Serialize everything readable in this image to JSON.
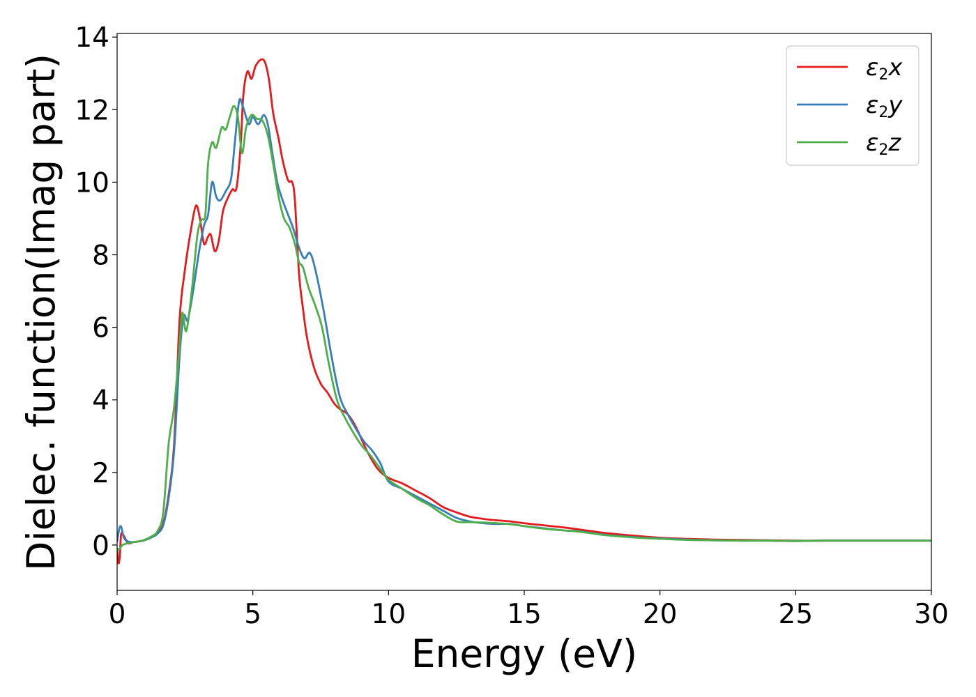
{
  "chart_data": {
    "type": "line",
    "title": "",
    "xlabel": "Energy (eV)",
    "ylabel": "Dielec. function(Imag part)",
    "xlim": [
      0,
      30
    ],
    "ylim": [
      -1.25,
      14.1
    ],
    "xticks": [
      0,
      5,
      10,
      15,
      20,
      25,
      30
    ],
    "xtick_labels": [
      "0",
      "5",
      "10",
      "15",
      "20",
      "25",
      "30"
    ],
    "yticks": [
      0,
      2,
      4,
      6,
      8,
      10,
      12,
      14
    ],
    "ytick_labels": [
      "0",
      "2",
      "4",
      "6",
      "8",
      "10",
      "12",
      "14"
    ],
    "grid": false,
    "legend_position": "top-right",
    "series": [
      {
        "name_base": "ε",
        "name_sub": "2",
        "name_var": "x",
        "color": "#e41a1c",
        "points": [
          [
            0,
            -0.1
          ],
          [
            0.05,
            -0.5
          ],
          [
            0.1,
            -0.3
          ],
          [
            0.15,
            0.3
          ],
          [
            0.25,
            0.25
          ],
          [
            0.4,
            0.05
          ],
          [
            0.6,
            0.08
          ],
          [
            0.8,
            0.1
          ],
          [
            1.0,
            0.13
          ],
          [
            1.3,
            0.25
          ],
          [
            1.5,
            0.35
          ],
          [
            1.7,
            0.6
          ],
          [
            1.9,
            1.4
          ],
          [
            2.1,
            2.8
          ],
          [
            2.3,
            6.2
          ],
          [
            2.5,
            7.6
          ],
          [
            2.7,
            8.6
          ],
          [
            2.9,
            9.35
          ],
          [
            3.05,
            9.0
          ],
          [
            3.2,
            8.3
          ],
          [
            3.35,
            8.5
          ],
          [
            3.45,
            8.55
          ],
          [
            3.6,
            8.1
          ],
          [
            3.75,
            8.4
          ],
          [
            3.9,
            9.2
          ],
          [
            4.1,
            9.6
          ],
          [
            4.25,
            9.8
          ],
          [
            4.4,
            9.85
          ],
          [
            4.55,
            11.0
          ],
          [
            4.65,
            12.4
          ],
          [
            4.8,
            13.05
          ],
          [
            4.95,
            12.85
          ],
          [
            5.1,
            13.2
          ],
          [
            5.3,
            13.38
          ],
          [
            5.45,
            13.3
          ],
          [
            5.6,
            12.8
          ],
          [
            5.75,
            11.9
          ],
          [
            5.95,
            11.2
          ],
          [
            6.1,
            10.6
          ],
          [
            6.3,
            10.05
          ],
          [
            6.45,
            10.0
          ],
          [
            6.55,
            9.5
          ],
          [
            6.7,
            7.5
          ],
          [
            6.85,
            6.5
          ],
          [
            7.0,
            5.7
          ],
          [
            7.25,
            4.9
          ],
          [
            7.5,
            4.45
          ],
          [
            7.75,
            4.2
          ],
          [
            8.0,
            3.9
          ],
          [
            8.2,
            3.75
          ],
          [
            8.5,
            3.6
          ],
          [
            8.8,
            3.25
          ],
          [
            9.2,
            2.6
          ],
          [
            9.6,
            2.1
          ],
          [
            10.0,
            1.85
          ],
          [
            10.5,
            1.7
          ],
          [
            11.0,
            1.5
          ],
          [
            11.5,
            1.3
          ],
          [
            12.0,
            1.05
          ],
          [
            12.5,
            0.9
          ],
          [
            13.0,
            0.78
          ],
          [
            13.5,
            0.72
          ],
          [
            14.0,
            0.68
          ],
          [
            14.5,
            0.65
          ],
          [
            15.0,
            0.6
          ],
          [
            15.5,
            0.56
          ],
          [
            16.0,
            0.52
          ],
          [
            16.5,
            0.48
          ],
          [
            17.0,
            0.43
          ],
          [
            17.5,
            0.38
          ],
          [
            18.0,
            0.33
          ],
          [
            19.0,
            0.26
          ],
          [
            20.0,
            0.2
          ],
          [
            21.0,
            0.17
          ],
          [
            22.0,
            0.15
          ],
          [
            23.0,
            0.14
          ],
          [
            24.0,
            0.13
          ],
          [
            25.0,
            0.12
          ],
          [
            26.0,
            0.12
          ],
          [
            28.0,
            0.12
          ],
          [
            30.0,
            0.12
          ]
        ]
      },
      {
        "name_base": "ε",
        "name_sub": "2",
        "name_var": "y",
        "color": "#377eb8",
        "points": [
          [
            0,
            0.1
          ],
          [
            0.08,
            0.45
          ],
          [
            0.15,
            0.5
          ],
          [
            0.25,
            0.2
          ],
          [
            0.4,
            0.1
          ],
          [
            0.6,
            0.08
          ],
          [
            0.8,
            0.1
          ],
          [
            1.0,
            0.13
          ],
          [
            1.3,
            0.22
          ],
          [
            1.5,
            0.32
          ],
          [
            1.7,
            0.55
          ],
          [
            1.9,
            1.3
          ],
          [
            2.1,
            2.6
          ],
          [
            2.3,
            5.2
          ],
          [
            2.45,
            6.3
          ],
          [
            2.6,
            6.2
          ],
          [
            2.8,
            7.0
          ],
          [
            3.0,
            8.0
          ],
          [
            3.2,
            8.8
          ],
          [
            3.35,
            9.1
          ],
          [
            3.5,
            10.0
          ],
          [
            3.65,
            9.6
          ],
          [
            3.8,
            9.5
          ],
          [
            4.0,
            9.75
          ],
          [
            4.2,
            10.1
          ],
          [
            4.35,
            11.2
          ],
          [
            4.5,
            12.25
          ],
          [
            4.65,
            12.05
          ],
          [
            4.85,
            11.6
          ],
          [
            5.0,
            11.8
          ],
          [
            5.2,
            11.6
          ],
          [
            5.4,
            11.85
          ],
          [
            5.55,
            11.6
          ],
          [
            5.7,
            10.9
          ],
          [
            5.9,
            10.0
          ],
          [
            6.1,
            9.5
          ],
          [
            6.3,
            9.1
          ],
          [
            6.5,
            8.7
          ],
          [
            6.7,
            8.2
          ],
          [
            6.9,
            7.9
          ],
          [
            7.1,
            8.05
          ],
          [
            7.3,
            7.6
          ],
          [
            7.6,
            6.5
          ],
          [
            7.9,
            5.2
          ],
          [
            8.2,
            4.1
          ],
          [
            8.5,
            3.6
          ],
          [
            8.8,
            3.2
          ],
          [
            9.1,
            2.85
          ],
          [
            9.4,
            2.6
          ],
          [
            9.7,
            2.25
          ],
          [
            10.0,
            1.75
          ],
          [
            10.5,
            1.55
          ],
          [
            11.0,
            1.35
          ],
          [
            11.5,
            1.15
          ],
          [
            12.0,
            0.95
          ],
          [
            12.5,
            0.75
          ],
          [
            13.0,
            0.65
          ],
          [
            13.5,
            0.6
          ],
          [
            14.0,
            0.58
          ],
          [
            14.5,
            0.58
          ],
          [
            15.0,
            0.52
          ],
          [
            15.5,
            0.48
          ],
          [
            16.0,
            0.44
          ],
          [
            16.5,
            0.4
          ],
          [
            17.0,
            0.38
          ],
          [
            17.5,
            0.33
          ],
          [
            18.0,
            0.28
          ],
          [
            19.0,
            0.22
          ],
          [
            20.0,
            0.18
          ],
          [
            21.0,
            0.15
          ],
          [
            22.0,
            0.13
          ],
          [
            23.0,
            0.12
          ],
          [
            24.0,
            0.12
          ],
          [
            25.0,
            0.11
          ],
          [
            26.0,
            0.12
          ],
          [
            28.0,
            0.12
          ],
          [
            30.0,
            0.12
          ]
        ]
      },
      {
        "name_base": "ε",
        "name_sub": "2",
        "name_var": "z",
        "color": "#4daf4a",
        "points": [
          [
            0,
            -0.15
          ],
          [
            0.1,
            -0.1
          ],
          [
            0.2,
            0.0
          ],
          [
            0.4,
            0.05
          ],
          [
            0.6,
            0.08
          ],
          [
            0.8,
            0.1
          ],
          [
            1.0,
            0.14
          ],
          [
            1.3,
            0.25
          ],
          [
            1.5,
            0.4
          ],
          [
            1.7,
            0.9
          ],
          [
            1.9,
            2.8
          ],
          [
            2.1,
            3.8
          ],
          [
            2.3,
            5.5
          ],
          [
            2.4,
            6.4
          ],
          [
            2.55,
            5.9
          ],
          [
            2.75,
            7.0
          ],
          [
            2.95,
            8.5
          ],
          [
            3.1,
            8.95
          ],
          [
            3.25,
            9.1
          ],
          [
            3.35,
            10.5
          ],
          [
            3.5,
            11.1
          ],
          [
            3.65,
            10.95
          ],
          [
            3.85,
            11.5
          ],
          [
            4.0,
            11.45
          ],
          [
            4.15,
            11.8
          ],
          [
            4.3,
            12.1
          ],
          [
            4.45,
            11.8
          ],
          [
            4.6,
            10.8
          ],
          [
            4.75,
            11.5
          ],
          [
            4.95,
            11.85
          ],
          [
            5.15,
            11.75
          ],
          [
            5.35,
            11.7
          ],
          [
            5.55,
            11.3
          ],
          [
            5.75,
            10.5
          ],
          [
            5.95,
            9.6
          ],
          [
            6.15,
            9.0
          ],
          [
            6.35,
            8.75
          ],
          [
            6.55,
            8.3
          ],
          [
            6.7,
            7.8
          ],
          [
            6.85,
            7.65
          ],
          [
            7.05,
            7.1
          ],
          [
            7.3,
            6.6
          ],
          [
            7.55,
            6.0
          ],
          [
            7.8,
            5.0
          ],
          [
            8.1,
            4.0
          ],
          [
            8.4,
            3.5
          ],
          [
            8.7,
            3.1
          ],
          [
            9.0,
            2.75
          ],
          [
            9.3,
            2.5
          ],
          [
            9.6,
            2.2
          ],
          [
            10.0,
            1.8
          ],
          [
            10.5,
            1.55
          ],
          [
            11.0,
            1.3
          ],
          [
            11.5,
            1.1
          ],
          [
            12.0,
            0.85
          ],
          [
            12.5,
            0.65
          ],
          [
            13.0,
            0.63
          ],
          [
            13.5,
            0.62
          ],
          [
            14.0,
            0.6
          ],
          [
            14.5,
            0.57
          ],
          [
            15.0,
            0.52
          ],
          [
            15.5,
            0.47
          ],
          [
            16.0,
            0.43
          ],
          [
            16.5,
            0.4
          ],
          [
            17.0,
            0.37
          ],
          [
            17.5,
            0.32
          ],
          [
            18.0,
            0.27
          ],
          [
            19.0,
            0.21
          ],
          [
            20.0,
            0.17
          ],
          [
            21.0,
            0.14
          ],
          [
            22.0,
            0.13
          ],
          [
            23.0,
            0.12
          ],
          [
            24.0,
            0.12
          ],
          [
            25.0,
            0.11
          ],
          [
            26.0,
            0.12
          ],
          [
            28.0,
            0.12
          ],
          [
            30.0,
            0.12
          ]
        ]
      }
    ]
  }
}
